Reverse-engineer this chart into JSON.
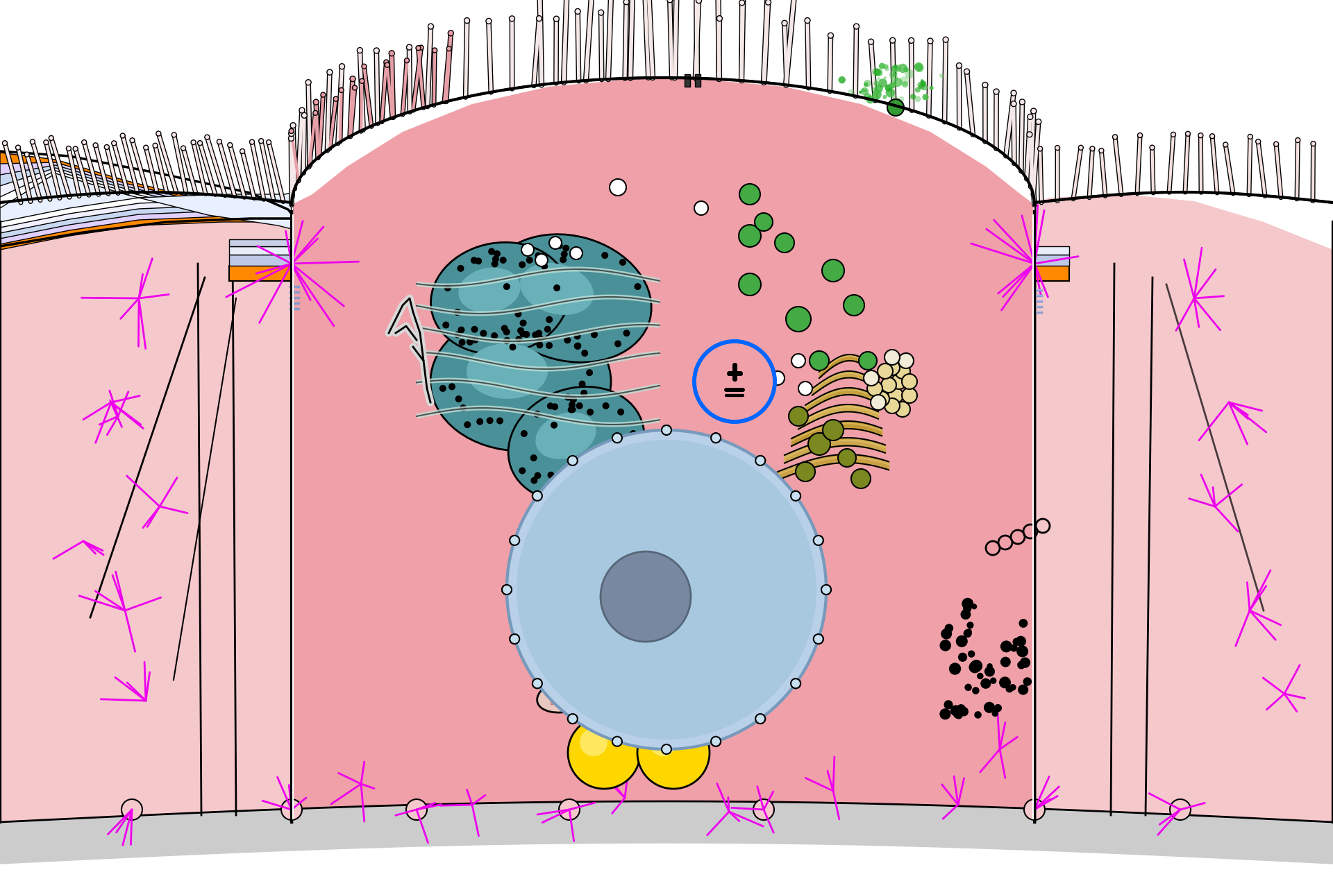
{
  "white_bg": "#FFFFFF",
  "cell_mid_color": "#F0A0A8",
  "cell_side_color": "#F5C0C4",
  "cell_lighter": "#F8D8DC",
  "cell_edge": "#111111",
  "basal_color": "#CCCCCC",
  "mv_fill": "#F5E0E0",
  "mv_pink": "#E8A0A8",
  "er_teal": "#4A9098",
  "er_dark": "#3A7880",
  "er_light": "#C8E8E0",
  "nucleus_fill": "#B8D0E8",
  "nucleus_edge": "#8899BB",
  "nucleolus": "#7888A0",
  "golgi_fill": "#C8A040",
  "golgi_light": "#E0C060",
  "golgi_dark": "#A07820",
  "green1": "#40AA40",
  "green2": "#809020",
  "beige_vesicle": "#E0D090",
  "white_vesicle": "#FFFFFF",
  "yellow1": "#FFD700",
  "black_dots": "#111111",
  "magenta": "#EE00EE",
  "blue_circle": "#0066FF",
  "orange_junc": "#FF8800",
  "junc_blue": "#8899CC",
  "mito_fill": "#C86060",
  "mito_stripe": "#A85050",
  "green_spray": "#44BB44"
}
